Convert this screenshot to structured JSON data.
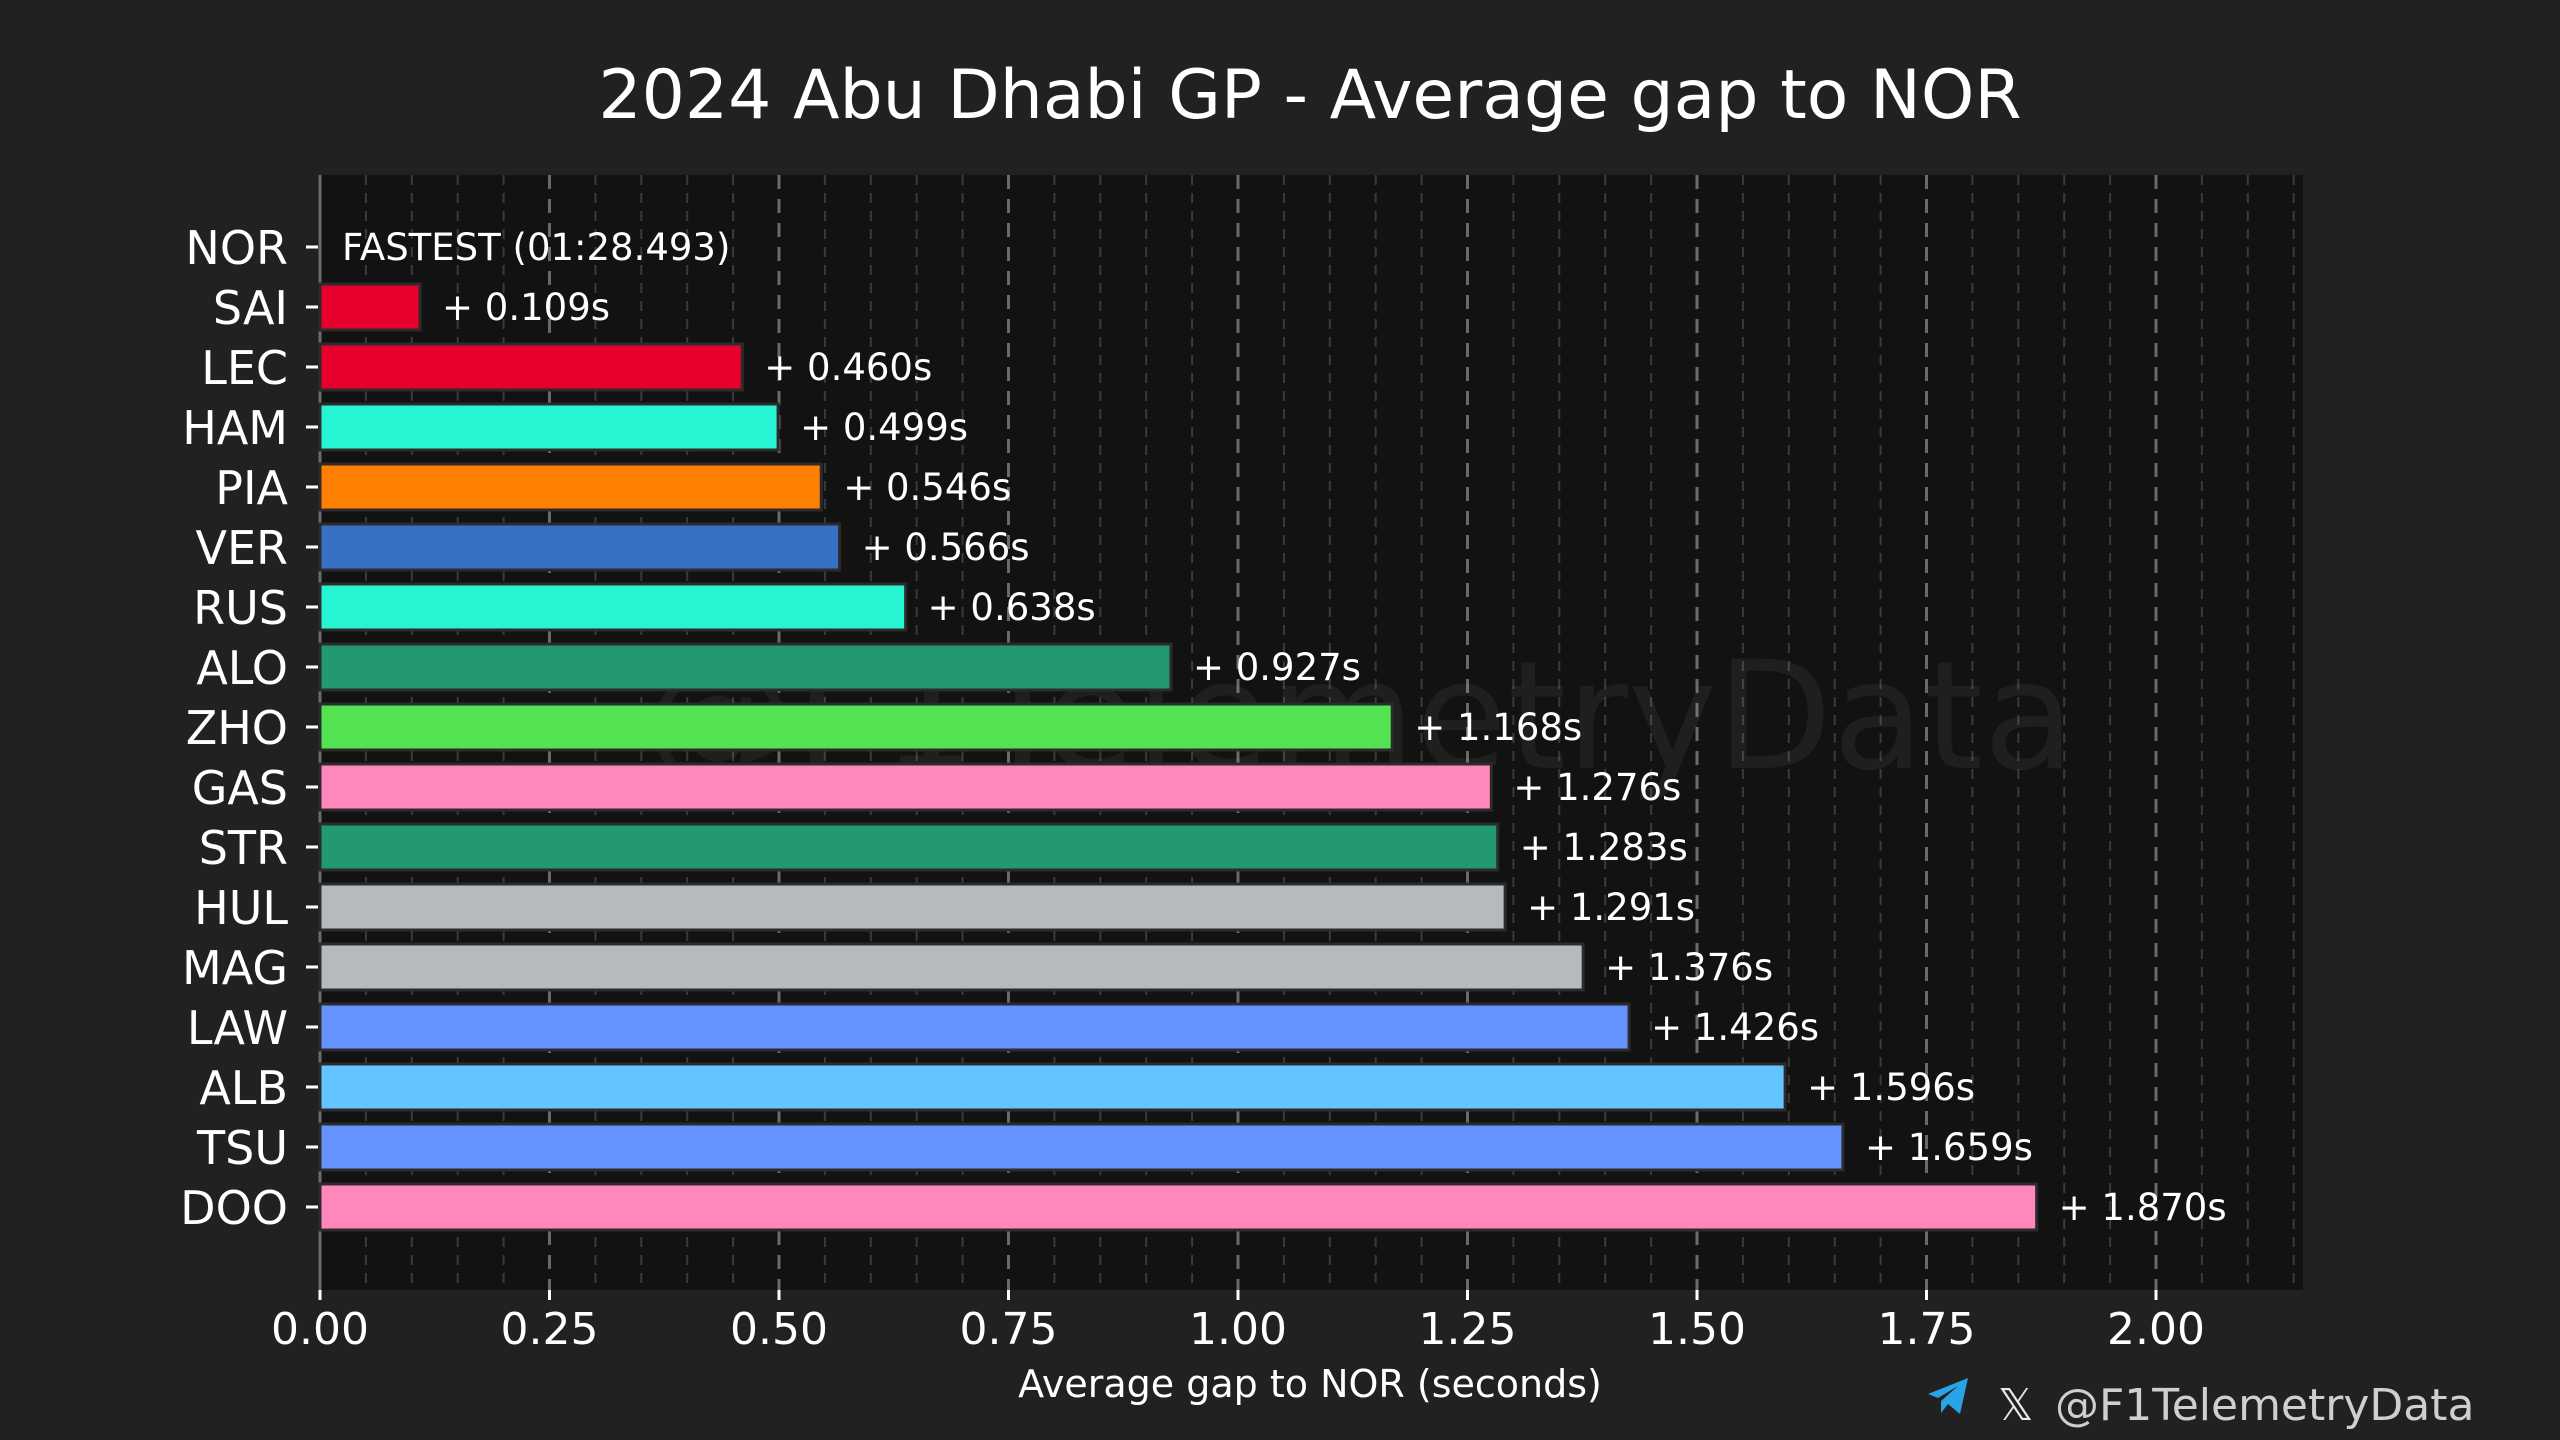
{
  "colors": {
    "background": "#212121",
    "plot_background": "#121212",
    "grid": "#5a5a5a",
    "telegram": "#2aa3e6"
  },
  "chart_data": {
    "type": "bar",
    "orientation": "horizontal",
    "title": "2024 Abu Dhabi GP - Average gap to NOR",
    "xlabel": "Average gap to NOR (seconds)",
    "ylabel": "",
    "xlim": [
      0,
      2.15
    ],
    "xticks": [
      "0.00",
      "0.25",
      "0.50",
      "0.75",
      "1.00",
      "1.25",
      "1.50",
      "1.75",
      "2.00"
    ],
    "grid": "vertical dashed",
    "categories": [
      "NOR",
      "SAI",
      "LEC",
      "HAM",
      "PIA",
      "VER",
      "RUS",
      "ALO",
      "ZHO",
      "GAS",
      "STR",
      "HUL",
      "MAG",
      "LAW",
      "ALB",
      "TSU",
      "DOO"
    ],
    "values": [
      0,
      0.109,
      0.46,
      0.499,
      0.546,
      0.566,
      0.638,
      0.927,
      1.168,
      1.276,
      1.283,
      1.291,
      1.376,
      1.426,
      1.596,
      1.659,
      1.87
    ],
    "labels": [
      "FASTEST (01:28.493)",
      "+ 0.109s",
      "+ 0.460s",
      "+ 0.499s",
      "+ 0.546s",
      "+ 0.566s",
      "+ 0.638s",
      "+ 0.927s",
      "+ 1.168s",
      "+ 1.276s",
      "+ 1.283s",
      "+ 1.291s",
      "+ 1.376s",
      "+ 1.426s",
      "+ 1.596s",
      "+ 1.659s",
      "+ 1.870s"
    ],
    "bar_colors": [
      "#ff8000",
      "#e8002d",
      "#e8002d",
      "#27f4d2",
      "#ff8000",
      "#3671c6",
      "#27f4d2",
      "#229971",
      "#52e252",
      "#ff87bc",
      "#229971",
      "#b6babd",
      "#b6babd",
      "#6692ff",
      "#64c4ff",
      "#6692ff",
      "#ff87bc"
    ]
  },
  "watermark": "@F1TelemetryData",
  "footer": {
    "telegram_icon": "telegram-icon",
    "x_icon": "x-icon",
    "x_glyph": "𝕏",
    "handle": "@F1TelemetryData"
  }
}
